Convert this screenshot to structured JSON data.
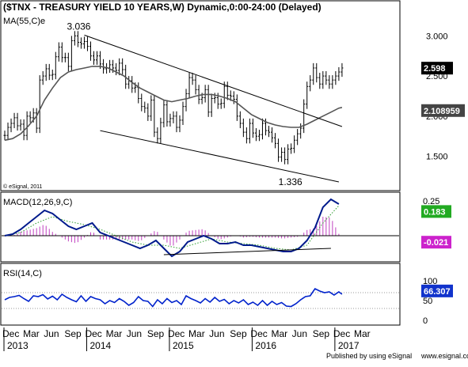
{
  "chart_data": {
    "type": "line",
    "panels": [
      {
        "id": "price",
        "title": "($TNX - TREASURY YIELD 10 YEARS,W) Dynamic,0:00-24:00 (Delayed)",
        "legend": [
          "MA(55,C)e"
        ],
        "ylim": [
          1.2,
          3.25
        ],
        "yticks": [
          "3.000",
          "2.500",
          "2.000",
          "1.500"
        ],
        "series": [
          {
            "style": "ohlc",
            "x": [
              0,
              2,
              4,
              6,
              8,
              10,
              12,
              14,
              16,
              18,
              20,
              22,
              24,
              26,
              28,
              30,
              32,
              34,
              36,
              38,
              40,
              42,
              44,
              46,
              48,
              50,
              52,
              54,
              56,
              58,
              60,
              62,
              64,
              66,
              68,
              70,
              72,
              74,
              76,
              78,
              80,
              82,
              84,
              86,
              88,
              90,
              92,
              94,
              96,
              98,
              100,
              102,
              104,
              106,
              108,
              110,
              112,
              114,
              116,
              118,
              120,
              122,
              124,
              126,
              128,
              130,
              132,
              134,
              136,
              138,
              140,
              142,
              144,
              146,
              148,
              150,
              152,
              154,
              156,
              158,
              160,
              162,
              164,
              166,
              168,
              170,
              172,
              174,
              176,
              178,
              180,
              182,
              184,
              186,
              188,
              190,
              192,
              194,
              196,
              198,
              200,
              202,
              204,
              206,
              208,
              210,
              212
            ],
            "values": [
              1.76,
              1.86,
              1.91,
              1.98,
              1.88,
              1.9,
              1.76,
              2.0,
              1.98,
              2.04,
              1.85,
              2.45,
              2.5,
              2.59,
              2.51,
              2.52,
              2.74,
              2.86,
              2.73,
              2.73,
              2.62,
              2.94,
              3.0,
              2.92,
              2.9,
              2.93,
              2.87,
              2.75,
              2.7,
              2.75,
              2.65,
              2.59,
              2.6,
              2.64,
              2.6,
              2.57,
              2.66,
              2.58,
              2.4,
              2.44,
              2.35,
              2.36,
              2.22,
              2.12,
              2.1,
              2.0,
              2.2,
              1.8,
              1.72,
              1.92,
              2.14,
              1.93,
              1.97,
              2.0,
              1.86,
              1.95,
              2.12,
              2.28,
              2.48,
              2.45,
              2.33,
              2.21,
              2.23,
              2.33,
              2.05,
              2.22,
              2.23,
              2.15,
              2.16,
              2.37,
              2.26,
              2.25,
              2.21,
              2.0,
              1.91,
              1.8,
              1.72,
              1.91,
              1.79,
              1.75,
              1.77,
              1.91,
              1.82,
              1.8,
              1.73,
              1.66,
              1.49,
              1.55,
              1.46,
              1.59,
              1.6,
              1.7,
              1.78,
              1.85,
              2.15,
              2.37,
              2.45,
              2.6,
              2.48,
              2.4,
              2.5,
              2.45,
              2.4,
              2.45,
              2.5,
              2.55,
              2.6
            ]
          },
          {
            "name": "MA(55,C)e",
            "style": "line",
            "x": [
              0,
              5,
              10,
              15,
              20,
              25,
              30,
              35,
              40,
              45,
              50,
              55,
              60,
              65,
              70,
              75,
              80,
              85,
              90,
              95,
              100,
              105,
              110,
              115,
              120,
              125,
              130,
              135,
              140,
              145,
              150,
              155,
              160,
              165,
              170,
              175,
              180,
              185,
              190,
              195,
              200,
              205,
              210,
              212
            ],
            "values": [
              1.7,
              1.72,
              1.78,
              1.88,
              2.0,
              2.2,
              2.35,
              2.48,
              2.55,
              2.58,
              2.6,
              2.62,
              2.62,
              2.6,
              2.55,
              2.5,
              2.42,
              2.35,
              2.3,
              2.25,
              2.2,
              2.18,
              2.2,
              2.22,
              2.25,
              2.27,
              2.27,
              2.25,
              2.22,
              2.18,
              2.1,
              2.02,
              1.97,
              1.92,
              1.89,
              1.87,
              1.86,
              1.86,
              1.9,
              1.95,
              2.0,
              2.05,
              2.1,
              2.109
            ]
          },
          {
            "style": "trendline",
            "x": [
              50,
              212
            ],
            "values": [
              3.01,
              1.87
            ]
          },
          {
            "style": "trendline",
            "x": [
              60,
              210
            ],
            "values": [
              1.82,
              1.18
            ]
          }
        ],
        "annotations": [
          {
            "text": "3.036",
            "x": 50,
            "y": 3.036
          },
          {
            "text": "1.336",
            "x": 183,
            "y": 1.336
          }
        ],
        "value_labels": [
          {
            "text": "2.598",
            "y": 2.598
          },
          {
            "text": "2.108959",
            "y": 2.109
          }
        ],
        "watermark": "© eSignal, 2011"
      },
      {
        "id": "macd",
        "title": "MACD(12,26,9,C)",
        "ylim": [
          -0.15,
          0.25
        ],
        "ytick_top": "0.25",
        "series": [
          {
            "name": "MACD",
            "style": "line",
            "x": [
              0,
              5,
              10,
              15,
              20,
              25,
              30,
              35,
              40,
              45,
              50,
              55,
              60,
              65,
              70,
              75,
              80,
              85,
              90,
              95,
              100,
              105,
              110,
              115,
              120,
              125,
              130,
              135,
              140,
              145,
              150,
              155,
              160,
              165,
              170,
              175,
              180,
              185,
              190,
              195,
              200,
              205,
              210
            ],
            "values": [
              0.0,
              0.01,
              0.04,
              0.08,
              0.12,
              0.16,
              0.14,
              0.1,
              0.06,
              0.04,
              0.06,
              0.08,
              0.02,
              0.0,
              -0.02,
              -0.04,
              -0.06,
              -0.08,
              -0.06,
              -0.03,
              -0.08,
              -0.13,
              -0.1,
              -0.04,
              -0.02,
              0.0,
              -0.02,
              -0.05,
              -0.05,
              -0.04,
              -0.06,
              -0.06,
              -0.07,
              -0.08,
              -0.09,
              -0.1,
              -0.1,
              -0.08,
              -0.03,
              0.05,
              0.18,
              0.23,
              0.2
            ]
          },
          {
            "name": "Signal",
            "style": "dotted",
            "x": [
              0,
              10,
              20,
              30,
              40,
              50,
              60,
              70,
              80,
              90,
              100,
              110,
              120,
              130,
              140,
              150,
              160,
              170,
              180,
              190,
              200,
              210
            ],
            "values": [
              0.0,
              0.02,
              0.08,
              0.12,
              0.09,
              0.07,
              0.04,
              0.0,
              -0.04,
              -0.06,
              -0.06,
              -0.08,
              -0.05,
              -0.02,
              -0.04,
              -0.05,
              -0.06,
              -0.08,
              -0.09,
              -0.06,
              0.08,
              0.19
            ]
          },
          {
            "style": "trendline",
            "x": [
              100,
              205
            ],
            "values": [
              -0.12,
              -0.08
            ]
          }
        ],
        "value_labels": [
          {
            "text": "0.183",
            "y": 0.183
          },
          {
            "text": "-0.021",
            "y": -0.021
          }
        ]
      },
      {
        "id": "rsi",
        "title": "RSI(14,C)",
        "ylim": [
          0,
          100
        ],
        "yticks": [
          "100",
          "50",
          "0"
        ],
        "reference_lines": [
          70,
          30
        ],
        "series": [
          {
            "name": "RSI",
            "style": "line",
            "x": [
              0,
              3,
              6,
              9,
              12,
              15,
              18,
              21,
              24,
              27,
              30,
              33,
              36,
              39,
              42,
              45,
              48,
              51,
              54,
              57,
              60,
              63,
              66,
              69,
              72,
              75,
              78,
              81,
              84,
              87,
              90,
              93,
              96,
              99,
              102,
              105,
              108,
              111,
              114,
              117,
              120,
              123,
              126,
              129,
              132,
              135,
              138,
              141,
              144,
              147,
              150,
              153,
              156,
              159,
              162,
              165,
              168,
              171,
              174,
              177,
              180,
              183,
              186,
              189,
              192,
              195,
              198,
              201,
              204,
              207,
              210,
              212
            ],
            "values": [
              52,
              58,
              60,
              63,
              55,
              48,
              62,
              60,
              65,
              54,
              61,
              52,
              66,
              58,
              52,
              47,
              62,
              48,
              60,
              55,
              52,
              42,
              50,
              45,
              55,
              48,
              38,
              45,
              60,
              50,
              48,
              35,
              52,
              42,
              55,
              45,
              50,
              40,
              62,
              55,
              50,
              44,
              55,
              46,
              58,
              48,
              53,
              42,
              50,
              44,
              52,
              40,
              46,
              38,
              50,
              38,
              48,
              40,
              45,
              36,
              35,
              42,
              52,
              60,
              62,
              80,
              74,
              70,
              72,
              64,
              72,
              66
            ]
          }
        ],
        "value_labels": [
          {
            "text": "66.307",
            "y": 66.307
          }
        ]
      }
    ],
    "xaxis": {
      "months": [
        {
          "x": 0,
          "label": "Dec"
        },
        {
          "x": 13,
          "label": "Mar"
        },
        {
          "x": 26,
          "label": "Jun"
        },
        {
          "x": 39,
          "label": "Sep"
        },
        {
          "x": 52,
          "label": "Dec"
        },
        {
          "x": 65,
          "label": "Mar"
        },
        {
          "x": 78,
          "label": "Jun"
        },
        {
          "x": 91,
          "label": "Sep"
        },
        {
          "x": 104,
          "label": "Dec"
        },
        {
          "x": 117,
          "label": "Mar"
        },
        {
          "x": 130,
          "label": "Jun"
        },
        {
          "x": 143,
          "label": "Sep"
        },
        {
          "x": 156,
          "label": "Dec"
        },
        {
          "x": 169,
          "label": "Mar"
        },
        {
          "x": 182,
          "label": "Jun"
        },
        {
          "x": 195,
          "label": "Sep"
        },
        {
          "x": 208,
          "label": "Dec"
        },
        {
          "x": 221,
          "label": "Mar"
        }
      ],
      "years": [
        {
          "x": 0,
          "label": "2013"
        },
        {
          "x": 52,
          "label": "2014"
        },
        {
          "x": 104,
          "label": "2015"
        },
        {
          "x": 156,
          "label": "2016"
        },
        {
          "x": 208,
          "label": "2017"
        }
      ]
    },
    "footer": "Published by using eSignal",
    "footer_brand": "www.esignal.com",
    "colors": {
      "price_bars": "#000000",
      "ma": "#555555",
      "macd": "#001a8c",
      "signal": "#2e9c2e",
      "histogram": "#c040c0",
      "rsi": "#0022cc",
      "label_black": "#000000",
      "label_gray": "#444444",
      "label_green": "#22aa22",
      "label_magenta": "#cc22cc",
      "label_blue": "#1133cc"
    }
  }
}
